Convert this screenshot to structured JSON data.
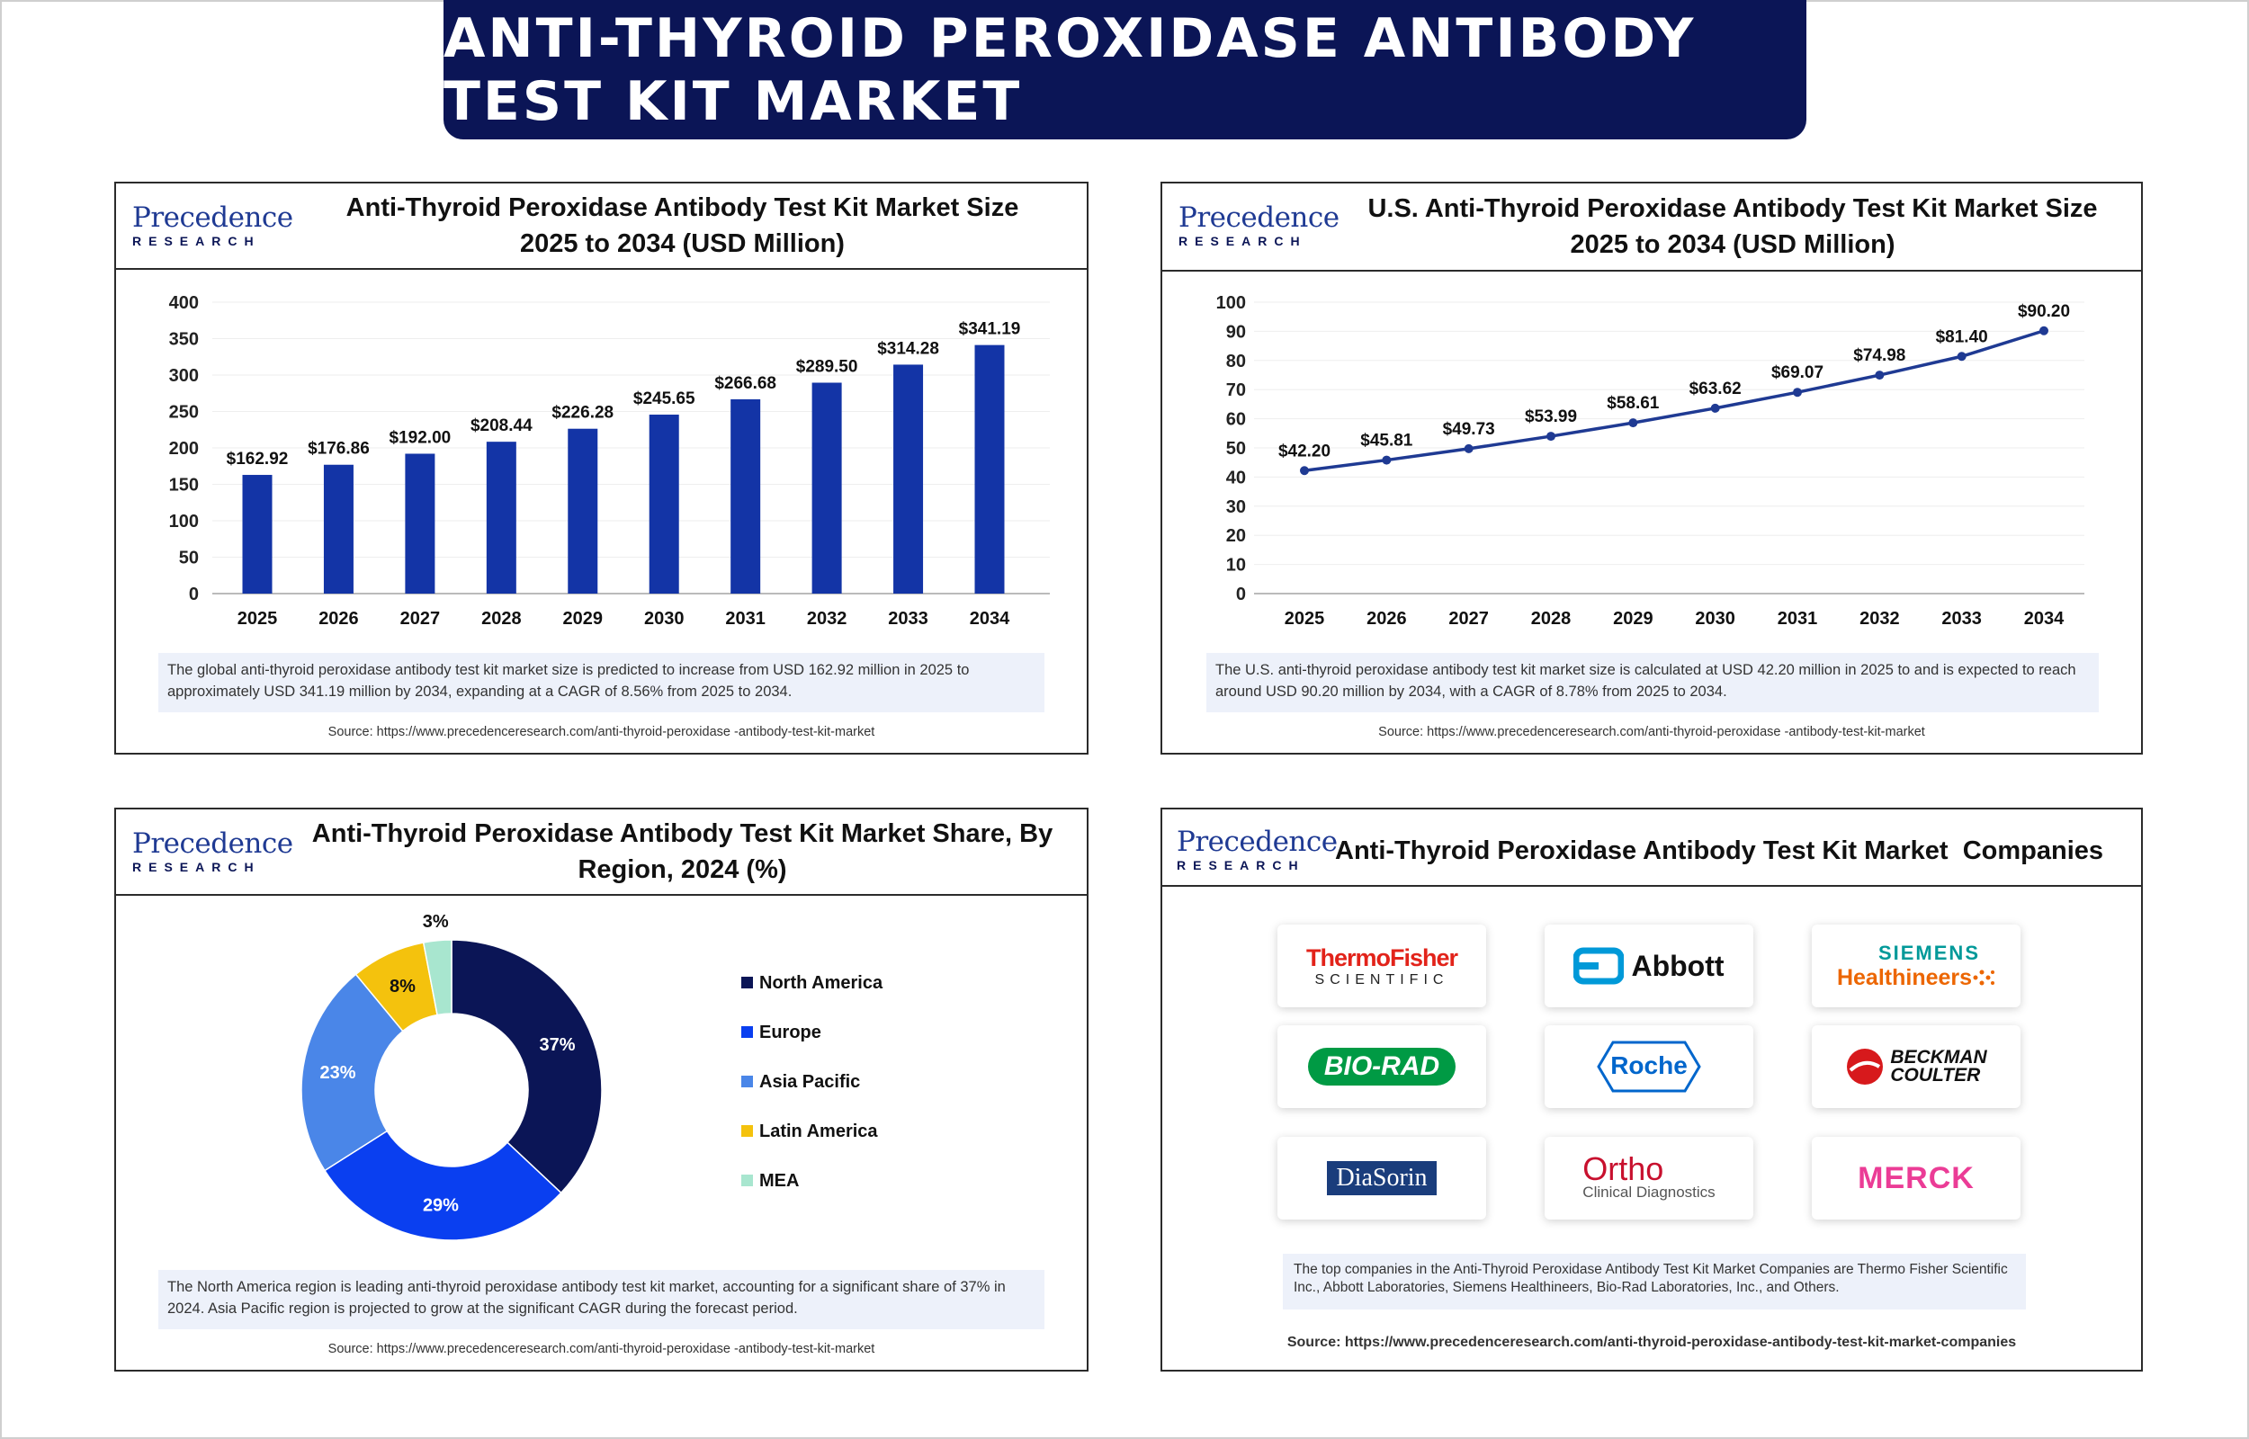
{
  "banner": {
    "title": "ANTI-THYROID PEROXIDASE ANTIBODY TEST KIT MARKET"
  },
  "logo": {
    "line1": "Precedence",
    "line2": "RESEARCH"
  },
  "panels": {
    "global": {
      "title1": "Anti-Thyroid Peroxidase Antibody Test Kit Market Size",
      "title2": "2025 to 2034 (USD Million)",
      "note": "The global anti-thyroid peroxidase antibody test kit market size is predicted to increase from USD 162.92 million in 2025 to approximately USD 341.19 million by 2034, expanding at a CAGR of 8.56% from 2025 to 2034.",
      "source": "Source: https://www.precedenceresearch.com/anti-thyroid-peroxidase -antibody-test-kit-market"
    },
    "us": {
      "title1": "U.S. Anti-Thyroid Peroxidase Antibody Test Kit Market Size",
      "title2": "2025 to 2034 (USD Million)",
      "note": "The U.S. anti-thyroid peroxidase antibody test kit market size is calculated at USD 42.20 million in 2025 to and is expected to reach around USD 90.20 million by 2034, with a CAGR of 8.78% from 2025 to 2034.",
      "source": "Source: https://www.precedenceresearch.com/anti-thyroid-peroxidase -antibody-test-kit-market"
    },
    "region": {
      "title1": "Anti-Thyroid Peroxidase Antibody Test Kit Market Share, By",
      "title2": "Region, 2024 (%)",
      "note": "The North America region is leading anti-thyroid peroxidase antibody test kit market, accounting for a significant share of 37% in 2024. Asia Pacific region is projected to grow at the significant CAGR during the forecast period.",
      "source": "Source: https://www.precedenceresearch.com/anti-thyroid-peroxidase -antibody-test-kit-market"
    },
    "companies": {
      "title": "Anti-Thyroid Peroxidase Antibody Test Kit Market  Companies",
      "note": "The top companies in the Anti-Thyroid Peroxidase Antibody Test Kit Market Companies are Thermo Fisher Scientific Inc., Abbott Laboratories, Siemens Healthineers, Bio-Rad Laboratories, Inc., and Others.",
      "source": "Source: https://www.precedenceresearch.com/anti-thyroid-peroxidase-antibody-test-kit-market-companies",
      "logos": {
        "thermo1": "ThermoFisher",
        "thermo2": "SCIENTIFIC",
        "abbott": "Abbott",
        "siemens1": "SIEMENS",
        "siemens2": "Healthineers",
        "biorad": "BIO-RAD",
        "roche": "Roche",
        "beckman1": "BECKMAN",
        "beckman2": "COULTER",
        "diasorin": "DiaSorin",
        "ortho1": "Ortho",
        "ortho2": "Clinical Diagnostics",
        "merck": "MERCK"
      }
    }
  },
  "chart_data": [
    {
      "type": "bar",
      "categories": [
        "2025",
        "2026",
        "2027",
        "2028",
        "2029",
        "2030",
        "2031",
        "2032",
        "2033",
        "2034"
      ],
      "values": [
        162.92,
        176.86,
        192.0,
        208.44,
        226.28,
        245.65,
        266.68,
        289.5,
        314.28,
        341.19
      ],
      "value_labels": [
        "$162.92",
        "$176.86",
        "$192.00",
        "$208.44",
        "$226.28",
        "$245.65",
        "$266.68",
        "$289.50",
        "$314.28",
        "$341.19"
      ],
      "yticks": [
        "0",
        "50",
        "100",
        "150",
        "200",
        "250",
        "300",
        "350",
        "400"
      ],
      "ylim": [
        0,
        400
      ],
      "color": "#1334a6",
      "grid": true
    },
    {
      "type": "line",
      "categories": [
        "2025",
        "2026",
        "2027",
        "2028",
        "2029",
        "2030",
        "2031",
        "2032",
        "2033",
        "2034"
      ],
      "values": [
        42.2,
        45.81,
        49.73,
        53.99,
        58.61,
        63.62,
        69.07,
        74.98,
        81.4,
        90.2
      ],
      "value_labels": [
        "$42.20",
        "$45.81",
        "$49.73",
        "$53.99",
        "$58.61",
        "$63.62",
        "$69.07",
        "$74.98",
        "$81.40",
        "$90.20"
      ],
      "yticks": [
        "0",
        "10",
        "20",
        "30",
        "40",
        "50",
        "60",
        "70",
        "80",
        "90",
        "100"
      ],
      "ylim": [
        0,
        100
      ],
      "color": "#1f3a93",
      "grid": true
    },
    {
      "type": "pie",
      "labels": [
        "North America",
        "Europe",
        "Asia Pacific",
        "Latin America",
        "MEA"
      ],
      "values": [
        37,
        29,
        23,
        8,
        3
      ],
      "value_labels": [
        "37%",
        "29%",
        "23%",
        "8%",
        "3%"
      ],
      "colors": [
        "#0b1556",
        "#0a3ff0",
        "#4a86e8",
        "#f4c20d",
        "#a8e6cf"
      ],
      "donut": true,
      "legend": "right"
    }
  ]
}
